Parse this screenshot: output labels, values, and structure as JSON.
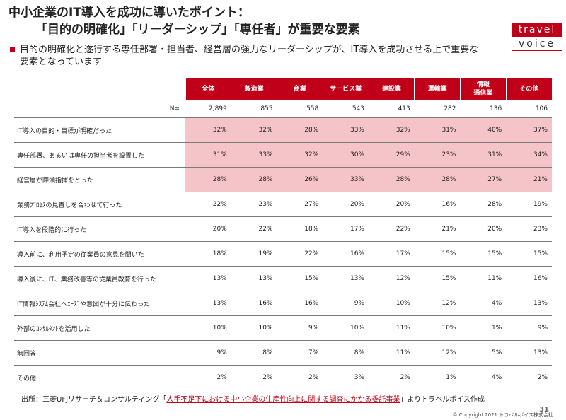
{
  "title": {
    "line1": "中小企業のIT導入を成功に導いたポイント：",
    "line2": "「目的の明確化」「リーダーシップ」「専任者」が重要な要素"
  },
  "logo": {
    "top": "travel",
    "bottom": "voice"
  },
  "bullet": {
    "text": "目的の明確化と遂行する専任部署・担当者、経営層の強力なリーダーシップが、IT導入を成功させる上で重要な要素となっています"
  },
  "colors": {
    "accent": "#c00018",
    "highlight": "#f5c4c8"
  },
  "table": {
    "columns": [
      "全体",
      "製造業",
      "商業",
      "サービス業",
      "建設業",
      "運輸業",
      "情報\n通信業",
      "その他"
    ],
    "n_label": "N=",
    "n_values": [
      "2,899",
      "855",
      "558",
      "543",
      "413",
      "282",
      "136",
      "106"
    ],
    "rows": [
      {
        "label": "IT導入の目的・目標が明確だった",
        "values": [
          "32%",
          "32%",
          "28%",
          "33%",
          "32%",
          "31%",
          "40%",
          "37%"
        ],
        "highlight": true
      },
      {
        "label": "専任部署、あるいは専任の担当者を設置した",
        "values": [
          "31%",
          "33%",
          "32%",
          "30%",
          "29%",
          "23%",
          "31%",
          "34%"
        ],
        "highlight": true
      },
      {
        "label": "経営層が陣頭指揮をとった",
        "values": [
          "28%",
          "28%",
          "26%",
          "33%",
          "28%",
          "28%",
          "27%",
          "21%"
        ],
        "highlight": true
      },
      {
        "label": "業務ﾌﾟﾛｾｽの見直しを合わせて行った",
        "values": [
          "22%",
          "23%",
          "27%",
          "20%",
          "20%",
          "16%",
          "28%",
          "19%"
        ],
        "highlight": false
      },
      {
        "label": "IT導入を段階的に行った",
        "values": [
          "20%",
          "22%",
          "18%",
          "17%",
          "22%",
          "21%",
          "20%",
          "23%"
        ],
        "highlight": false
      },
      {
        "label": "導入前に、利用予定の従業員の意見を聞いた",
        "values": [
          "18%",
          "19%",
          "22%",
          "16%",
          "17%",
          "15%",
          "15%",
          "15%"
        ],
        "highlight": false
      },
      {
        "label": "導入後に、IT、業務改善等の従業員教育を行った",
        "values": [
          "13%",
          "13%",
          "15%",
          "13%",
          "12%",
          "15%",
          "11%",
          "16%"
        ],
        "highlight": false
      },
      {
        "label": "IT情報ｼｽﾃﾑ会社へﾆｰｽﾞや意図が十分に伝わった",
        "values": [
          "13%",
          "16%",
          "16%",
          "9%",
          "10%",
          "12%",
          "4%",
          "13%"
        ],
        "highlight": false
      },
      {
        "label": "外部のｺﾝｻﾙﾀﾝﾄを活用した",
        "values": [
          "10%",
          "10%",
          "9%",
          "10%",
          "11%",
          "10%",
          "1%",
          "9%"
        ],
        "highlight": false
      },
      {
        "label": "無回答",
        "values": [
          "9%",
          "8%",
          "7%",
          "8%",
          "11%",
          "12%",
          "5%",
          "13%"
        ],
        "highlight": false
      },
      {
        "label": "その他",
        "values": [
          "2%",
          "2%",
          "2%",
          "3%",
          "2%",
          "1%",
          "4%",
          "2%"
        ],
        "highlight": false
      }
    ]
  },
  "source": {
    "prefix": "出所：三菱UFJリサーチ＆コンサルティング「",
    "link": "人手不足下における中小企業の生産性向上に関する調査にかかる委託事業",
    "suffix": "」よりトラベルボイス作成"
  },
  "footer": {
    "copyright": "© Copyright 2021 トラベルボイス株式会社",
    "page": "31"
  }
}
